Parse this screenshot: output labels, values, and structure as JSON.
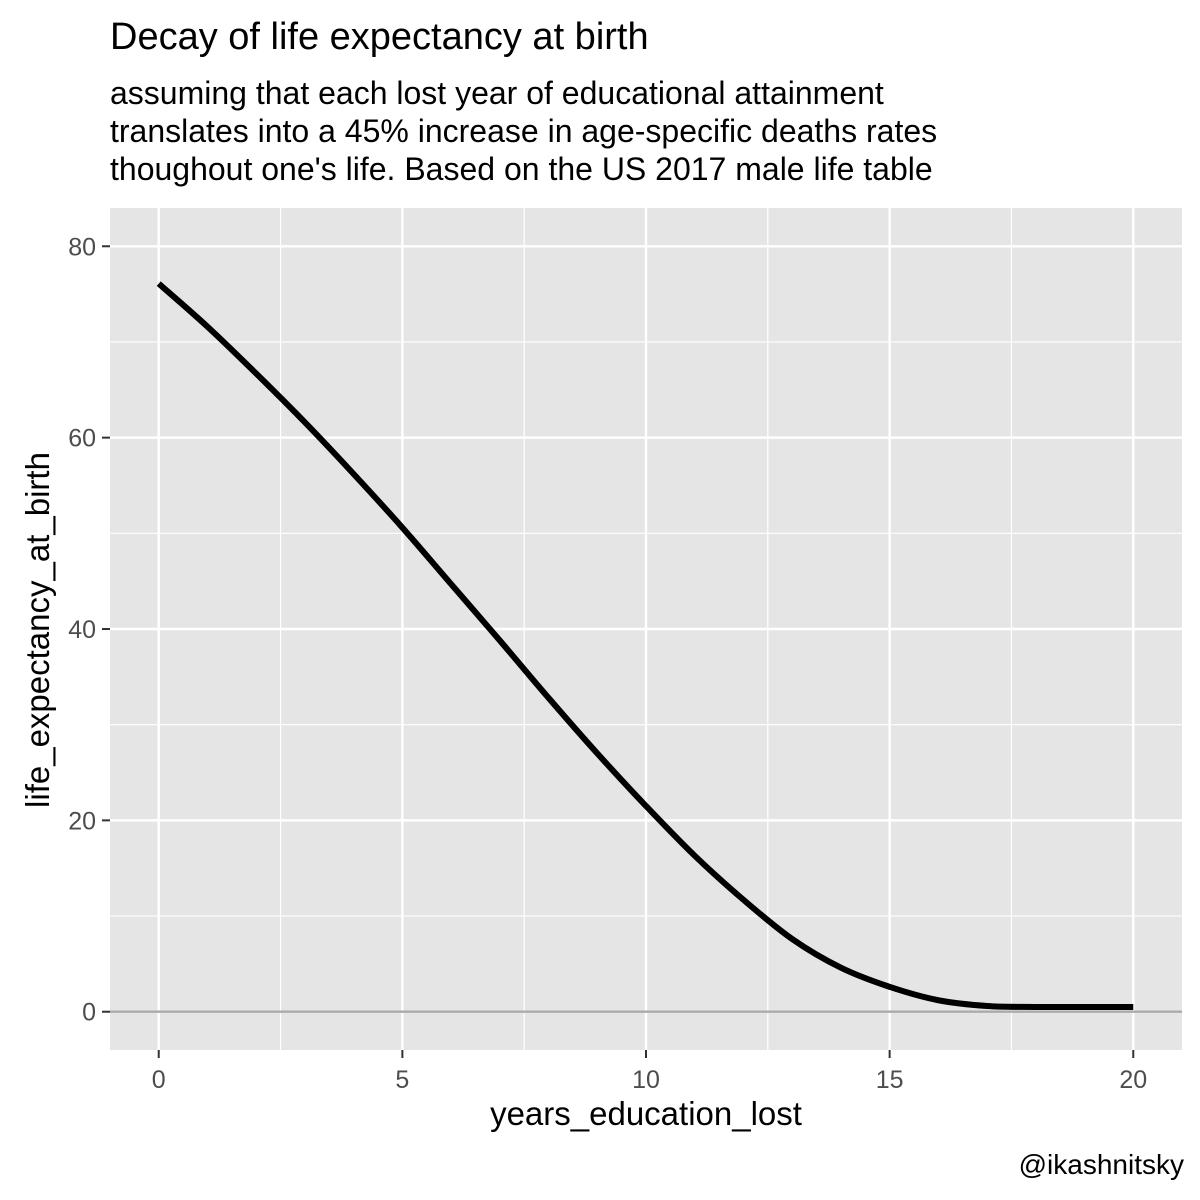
{
  "chart_data": {
    "type": "line",
    "title": "Decay of life expectancy at birth",
    "subtitle_lines": [
      "assuming that each lost year of educational attainment",
      "translates into a 45% increase in age-specific deaths rates",
      "thoughout one's life. Based on the US 2017 male life table"
    ],
    "xlabel": "years_education_lost",
    "ylabel": "life_expectancy_at_birth",
    "caption": "@ikashnitsky",
    "xlim": [
      -1,
      21
    ],
    "ylim": [
      -4,
      84
    ],
    "x_ticks": [
      0,
      5,
      10,
      15,
      20
    ],
    "y_ticks": [
      0,
      20,
      40,
      60,
      80
    ],
    "grid": true,
    "reference_line_y": 0,
    "colors": {
      "panel_background": "#e5e5e5",
      "grid_line": "#ffffff",
      "series_line": "#000000",
      "reference_line": "#aaaaaa",
      "tick_label": "#4d4d4d"
    },
    "series": [
      {
        "x": [
          0,
          1,
          2,
          3,
          4,
          5,
          6,
          7,
          8,
          9,
          10,
          11,
          12,
          13,
          14,
          15,
          16,
          17,
          18,
          19,
          20
        ],
        "y": [
          76.1,
          71.6,
          66.7,
          61.6,
          56.2,
          50.6,
          44.7,
          38.8,
          32.8,
          27.0,
          21.5,
          16.3,
          11.7,
          7.6,
          4.6,
          2.6,
          1.2,
          0.6,
          0.5,
          0.5,
          0.5
        ]
      }
    ]
  }
}
